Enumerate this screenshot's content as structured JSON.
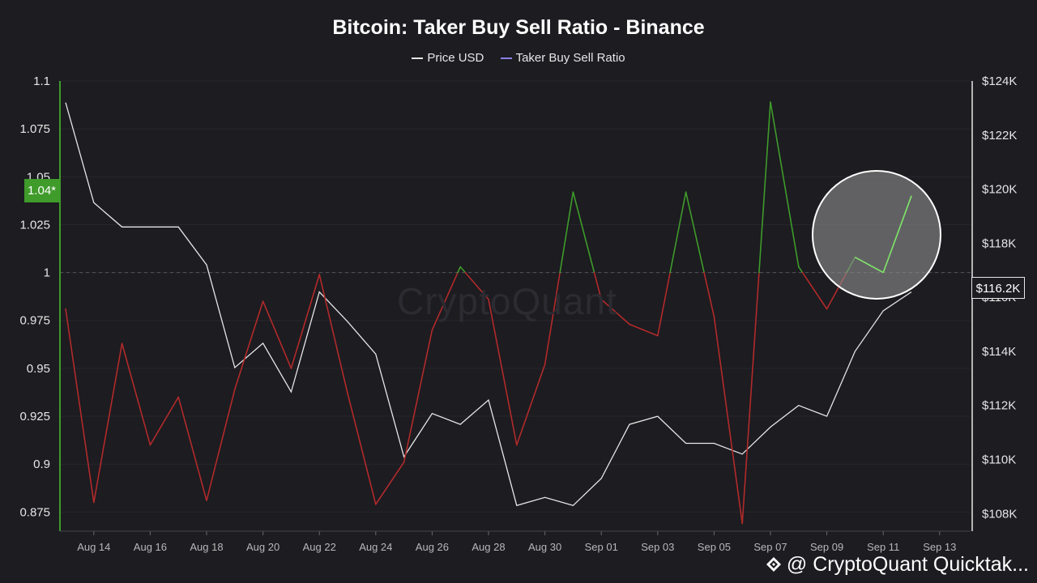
{
  "title": "Bitcoin: Taker Buy Sell Ratio - Binance",
  "watermark": "CryptoQuant",
  "brand": "@ CryptoQuant Quicktak...",
  "legend": [
    {
      "label": "Price USD",
      "color": "#e6e6e6"
    },
    {
      "label": "Taker Buy Sell Ratio",
      "color": "#8b7fe8"
    }
  ],
  "current_ratio_label": "1.04*",
  "current_price_label": "$116.2K",
  "colors": {
    "above": "#3f9b2a",
    "below": "#b22a2a",
    "price": "#e6e6e6",
    "highlight": "#8c8c8c"
  },
  "chart_data": {
    "type": "line",
    "x_ticks": [
      "Aug 14",
      "Aug 16",
      "Aug 18",
      "Aug 20",
      "Aug 22",
      "Aug 24",
      "Aug 26",
      "Aug 28",
      "Aug 30",
      "Sep 01",
      "Sep 03",
      "Sep 05",
      "Sep 07",
      "Sep 09",
      "Sep 11",
      "Sep 13"
    ],
    "y_left_ticks": [
      "1.1",
      "1.075",
      "1.05",
      "1.025",
      "1",
      "0.975",
      "0.95",
      "0.925",
      "0.9",
      "0.875"
    ],
    "y_right_ticks": [
      "$124K",
      "$122K",
      "$120K",
      "$118K",
      "$116K",
      "$114K",
      "$112K",
      "$110K",
      "$108K"
    ],
    "y_left_range": [
      0.865,
      1.1
    ],
    "y_right_range": [
      107.35,
      124
    ],
    "reference_line": 1,
    "x": [
      "Aug 13",
      "Aug 14",
      "Aug 15",
      "Aug 16",
      "Aug 17",
      "Aug 18",
      "Aug 19",
      "Aug 20",
      "Aug 21",
      "Aug 22",
      "Aug 23",
      "Aug 24",
      "Aug 25",
      "Aug 26",
      "Aug 27",
      "Aug 28",
      "Aug 29",
      "Aug 30",
      "Aug 31",
      "Sep 01",
      "Sep 02",
      "Sep 03",
      "Sep 04",
      "Sep 05",
      "Sep 06",
      "Sep 07",
      "Sep 08",
      "Sep 09",
      "Sep 10",
      "Sep 11",
      "Sep 12"
    ],
    "series": [
      {
        "name": "Taker Buy Sell Ratio",
        "axis": "left",
        "values": [
          0.981,
          0.88,
          0.963,
          0.91,
          0.935,
          0.881,
          0.939,
          0.985,
          0.95,
          0.999,
          0.937,
          0.879,
          0.901,
          0.97,
          1.003,
          0.986,
          0.91,
          0.952,
          1.042,
          0.986,
          0.973,
          0.967,
          1.042,
          0.977,
          0.869,
          1.089,
          1.003,
          0.981,
          1.008,
          1.0,
          1.04
        ]
      },
      {
        "name": "Price USD",
        "axis": "left-price",
        "values": [
          123.2,
          119.5,
          118.6,
          118.6,
          118.6,
          117.2,
          113.4,
          114.3,
          112.5,
          116.2,
          115.1,
          113.9,
          110.1,
          111.7,
          111.3,
          112.2,
          108.3,
          108.6,
          108.3,
          109.3,
          111.3,
          111.6,
          110.6,
          110.6,
          110.2,
          111.2,
          112.0,
          111.6,
          114.0,
          115.5,
          116.2
        ]
      }
    ]
  }
}
